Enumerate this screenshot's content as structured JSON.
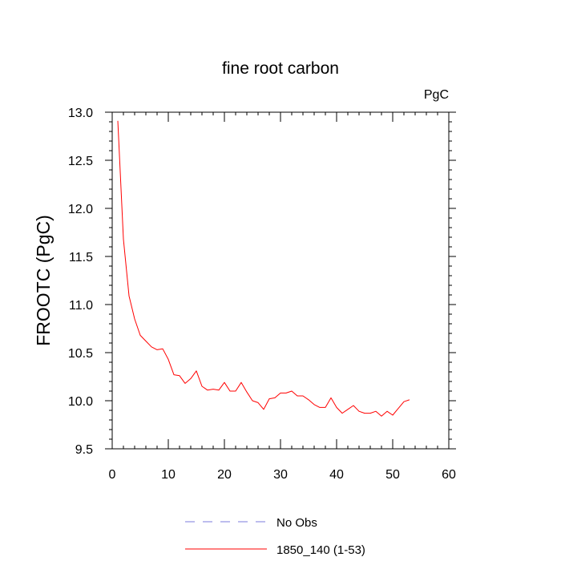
{
  "chart_data": {
    "type": "line",
    "title": "fine root carbon",
    "units_label": "PgC",
    "ylabel": "FROOTC  (PgC)",
    "xlabel": "",
    "xlim": [
      0,
      60
    ],
    "ylim": [
      9.5,
      13.0
    ],
    "x_ticks": [
      0,
      10,
      20,
      30,
      40,
      50,
      60
    ],
    "x_tick_labels": [
      "0",
      "10",
      "20",
      "30",
      "40",
      "50",
      "60"
    ],
    "y_ticks": [
      9.5,
      10.0,
      10.5,
      11.0,
      11.5,
      12.0,
      12.5,
      13.0
    ],
    "y_tick_labels": [
      "9.5",
      "10.0",
      "10.5",
      "11.0",
      "11.5",
      "12.0",
      "12.5",
      "13.0"
    ],
    "grid": false,
    "legend_position": "bottom",
    "series": [
      {
        "name": "No Obs",
        "color": "#7b7bdc",
        "dash": true,
        "x": [],
        "values": []
      },
      {
        "name": "1850_140 (1-53)",
        "color": "#ff0000",
        "dash": false,
        "x": [
          1,
          2,
          3,
          4,
          5,
          6,
          7,
          8,
          9,
          10,
          11,
          12,
          13,
          14,
          15,
          16,
          17,
          18,
          19,
          20,
          21,
          22,
          23,
          24,
          25,
          26,
          27,
          28,
          29,
          30,
          31,
          32,
          33,
          34,
          35,
          36,
          37,
          38,
          39,
          40,
          41,
          42,
          43,
          44,
          45,
          46,
          47,
          48,
          49,
          50,
          51,
          52,
          53
        ],
        "values": [
          12.91,
          11.68,
          11.09,
          10.85,
          10.68,
          10.62,
          10.56,
          10.53,
          10.54,
          10.43,
          10.27,
          10.26,
          10.18,
          10.23,
          10.31,
          10.15,
          10.11,
          10.12,
          10.11,
          10.19,
          10.1,
          10.1,
          10.19,
          10.09,
          10.0,
          9.98,
          9.91,
          10.02,
          10.03,
          10.08,
          10.08,
          10.1,
          10.05,
          10.05,
          10.01,
          9.96,
          9.93,
          9.93,
          10.03,
          9.93,
          9.87,
          9.91,
          9.95,
          9.89,
          9.87,
          9.87,
          9.89,
          9.84,
          9.89,
          9.85,
          9.92,
          9.99,
          10.01
        ]
      }
    ]
  }
}
